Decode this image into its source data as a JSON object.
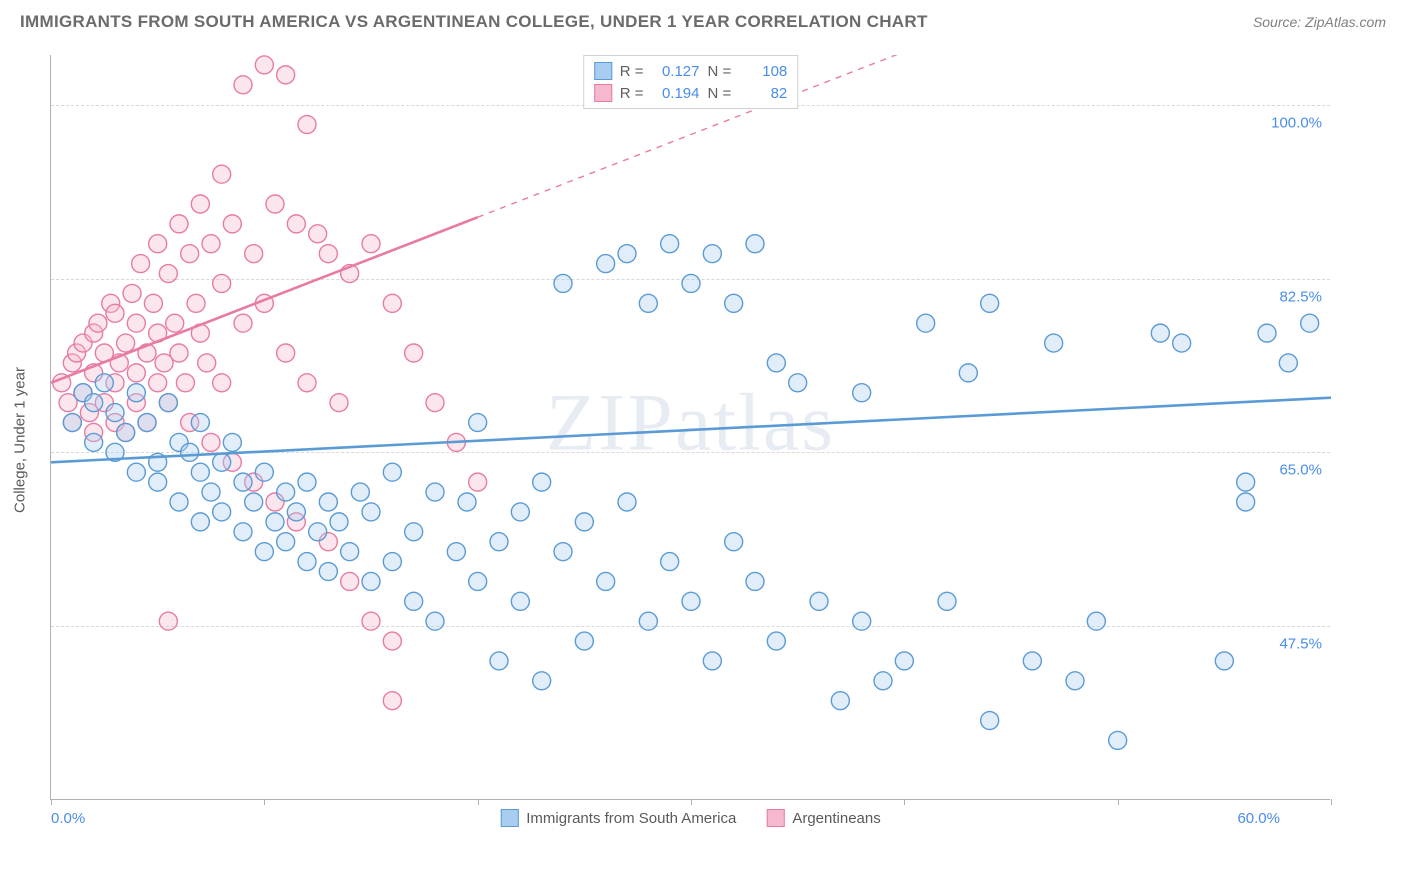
{
  "title": "IMMIGRANTS FROM SOUTH AMERICA VS ARGENTINEAN COLLEGE, UNDER 1 YEAR CORRELATION CHART",
  "source": "Source: ZipAtlas.com",
  "watermark": "ZIPatlas",
  "chart": {
    "type": "scatter",
    "ylabel": "College, Under 1 year",
    "xlim": [
      0,
      60
    ],
    "ylim": [
      30,
      105
    ],
    "x_ticks": [
      0,
      10,
      20,
      30,
      40,
      50,
      60
    ],
    "x_tick_labels_shown": {
      "start": "0.0%",
      "end": "60.0%"
    },
    "y_gridlines": [
      47.5,
      65.0,
      82.5,
      100.0
    ],
    "y_tick_labels": [
      "47.5%",
      "65.0%",
      "82.5%",
      "100.0%"
    ],
    "background_color": "#ffffff",
    "grid_color": "#d8d8d8",
    "axis_color": "#b0b0b0",
    "tick_label_color": "#4a8de8",
    "marker_radius": 9,
    "marker_stroke_width": 1.4,
    "marker_fill_opacity": 0.35,
    "trendline_width": 2.6,
    "series": [
      {
        "name": "Immigrants from South America",
        "color_stroke": "#5b9bd5",
        "color_fill": "#a8cdf0",
        "R": "0.127",
        "N": "108",
        "trend_start": [
          0,
          64
        ],
        "trend_end": [
          60,
          70.5
        ],
        "trend_dash_from_x": null,
        "points": [
          [
            1,
            68
          ],
          [
            1.5,
            71
          ],
          [
            2,
            70
          ],
          [
            2,
            66
          ],
          [
            2.5,
            72
          ],
          [
            3,
            69
          ],
          [
            3,
            65
          ],
          [
            3.5,
            67
          ],
          [
            4,
            71
          ],
          [
            4,
            63
          ],
          [
            4.5,
            68
          ],
          [
            5,
            64
          ],
          [
            5,
            62
          ],
          [
            5.5,
            70
          ],
          [
            6,
            66
          ],
          [
            6,
            60
          ],
          [
            6.5,
            65
          ],
          [
            7,
            63
          ],
          [
            7,
            68
          ],
          [
            7,
            58
          ],
          [
            7.5,
            61
          ],
          [
            8,
            64
          ],
          [
            8,
            59
          ],
          [
            8.5,
            66
          ],
          [
            9,
            62
          ],
          [
            9,
            57
          ],
          [
            9.5,
            60
          ],
          [
            10,
            63
          ],
          [
            10,
            55
          ],
          [
            10.5,
            58
          ],
          [
            11,
            61
          ],
          [
            11,
            56
          ],
          [
            11.5,
            59
          ],
          [
            12,
            54
          ],
          [
            12,
            62
          ],
          [
            12.5,
            57
          ],
          [
            13,
            60
          ],
          [
            13,
            53
          ],
          [
            13.5,
            58
          ],
          [
            14,
            55
          ],
          [
            14.5,
            61
          ],
          [
            15,
            52
          ],
          [
            15,
            59
          ],
          [
            16,
            54
          ],
          [
            16,
            63
          ],
          [
            17,
            50
          ],
          [
            17,
            57
          ],
          [
            18,
            61
          ],
          [
            18,
            48
          ],
          [
            19,
            55
          ],
          [
            19.5,
            60
          ],
          [
            20,
            52
          ],
          [
            20,
            68
          ],
          [
            21,
            56
          ],
          [
            21,
            44
          ],
          [
            22,
            59
          ],
          [
            22,
            50
          ],
          [
            23,
            42
          ],
          [
            23,
            62
          ],
          [
            24,
            55
          ],
          [
            24,
            82
          ],
          [
            25,
            58
          ],
          [
            25,
            46
          ],
          [
            26,
            84
          ],
          [
            26,
            52
          ],
          [
            27,
            85
          ],
          [
            27,
            60
          ],
          [
            28,
            80
          ],
          [
            28,
            48
          ],
          [
            29,
            54
          ],
          [
            29,
            86
          ],
          [
            30,
            82
          ],
          [
            30,
            50
          ],
          [
            31,
            85
          ],
          [
            31,
            44
          ],
          [
            32,
            80
          ],
          [
            32,
            56
          ],
          [
            33,
            86
          ],
          [
            33,
            52
          ],
          [
            34,
            74
          ],
          [
            34,
            46
          ],
          [
            35,
            72
          ],
          [
            36,
            50
          ],
          [
            37,
            40
          ],
          [
            38,
            71
          ],
          [
            38,
            48
          ],
          [
            39,
            42
          ],
          [
            40,
            44
          ],
          [
            41,
            78
          ],
          [
            42,
            50
          ],
          [
            43,
            73
          ],
          [
            44,
            80
          ],
          [
            44,
            38
          ],
          [
            46,
            44
          ],
          [
            47,
            76
          ],
          [
            48,
            42
          ],
          [
            49,
            48
          ],
          [
            50,
            36
          ],
          [
            52,
            77
          ],
          [
            53,
            76
          ],
          [
            55,
            44
          ],
          [
            56,
            60
          ],
          [
            56,
            62
          ],
          [
            57,
            77
          ],
          [
            58,
            74
          ],
          [
            59,
            78
          ]
        ]
      },
      {
        "name": "Argentineans",
        "color_stroke": "#e87ba4",
        "color_fill": "#f5b8cf",
        "R": "0.194",
        "N": "82",
        "trend_start": [
          0,
          72
        ],
        "trend_end": [
          60,
          122
        ],
        "trend_dash_from_x": 20,
        "points": [
          [
            0.5,
            72
          ],
          [
            0.8,
            70
          ],
          [
            1,
            74
          ],
          [
            1,
            68
          ],
          [
            1.2,
            75
          ],
          [
            1.5,
            71
          ],
          [
            1.5,
            76
          ],
          [
            1.8,
            69
          ],
          [
            2,
            73
          ],
          [
            2,
            77
          ],
          [
            2,
            67
          ],
          [
            2.2,
            78
          ],
          [
            2.5,
            70
          ],
          [
            2.5,
            75
          ],
          [
            2.8,
            80
          ],
          [
            3,
            72
          ],
          [
            3,
            68
          ],
          [
            3,
            79
          ],
          [
            3.2,
            74
          ],
          [
            3.5,
            76
          ],
          [
            3.5,
            67
          ],
          [
            3.8,
            81
          ],
          [
            4,
            73
          ],
          [
            4,
            70
          ],
          [
            4,
            78
          ],
          [
            4.2,
            84
          ],
          [
            4.5,
            75
          ],
          [
            4.5,
            68
          ],
          [
            4.8,
            80
          ],
          [
            5,
            72
          ],
          [
            5,
            77
          ],
          [
            5,
            86
          ],
          [
            5.3,
            74
          ],
          [
            5.5,
            70
          ],
          [
            5.5,
            83
          ],
          [
            5.8,
            78
          ],
          [
            6,
            75
          ],
          [
            6,
            88
          ],
          [
            6.3,
            72
          ],
          [
            6.5,
            85
          ],
          [
            6.5,
            68
          ],
          [
            6.8,
            80
          ],
          [
            7,
            77
          ],
          [
            7,
            90
          ],
          [
            7.3,
            74
          ],
          [
            7.5,
            86
          ],
          [
            7.5,
            66
          ],
          [
            8,
            82
          ],
          [
            8,
            72
          ],
          [
            8,
            93
          ],
          [
            8.5,
            88
          ],
          [
            8.5,
            64
          ],
          [
            9,
            78
          ],
          [
            9,
            102
          ],
          [
            9.5,
            85
          ],
          [
            9.5,
            62
          ],
          [
            10,
            80
          ],
          [
            10,
            104
          ],
          [
            10.5,
            90
          ],
          [
            10.5,
            60
          ],
          [
            11,
            103
          ],
          [
            11,
            75
          ],
          [
            11.5,
            88
          ],
          [
            11.5,
            58
          ],
          [
            12,
            98
          ],
          [
            12,
            72
          ],
          [
            12.5,
            87
          ],
          [
            13,
            85
          ],
          [
            13,
            56
          ],
          [
            13.5,
            70
          ],
          [
            14,
            83
          ],
          [
            14,
            52
          ],
          [
            15,
            86
          ],
          [
            15,
            48
          ],
          [
            16,
            80
          ],
          [
            16,
            46
          ],
          [
            17,
            75
          ],
          [
            18,
            70
          ],
          [
            19,
            66
          ],
          [
            20,
            62
          ],
          [
            16,
            40
          ],
          [
            5.5,
            48
          ]
        ]
      }
    ],
    "legend_bottom": [
      {
        "swatch_fill": "#a8cdf0",
        "swatch_stroke": "#5b9bd5",
        "label": "Immigrants from South America"
      },
      {
        "swatch_fill": "#f5b8cf",
        "swatch_stroke": "#e87ba4",
        "label": "Argentineans"
      }
    ]
  }
}
